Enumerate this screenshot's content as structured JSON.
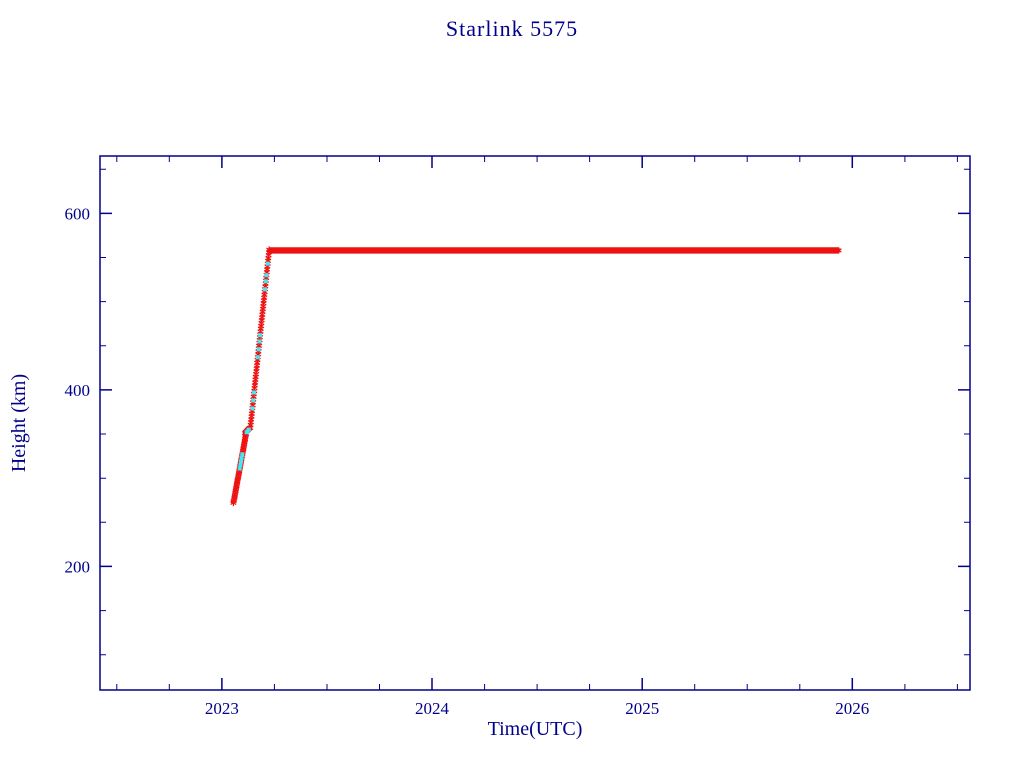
{
  "page": {
    "background": "#ffffff"
  },
  "chart_data": {
    "type": "scatter",
    "title": "Starlink 5575",
    "xlabel": "Time(UTC)",
    "ylabel": "Height (km)",
    "xlim": [
      2022.42,
      2026.56
    ],
    "ylim": [
      60,
      665
    ],
    "xticks": [
      2023,
      2024,
      2025,
      2026
    ],
    "yticks": [
      200,
      400,
      600
    ],
    "x_minor_step": 0.25,
    "y_minor_step": 50,
    "axis_color": "#00008b",
    "grid": false,
    "legend": null,
    "series": [
      {
        "name": "observed height",
        "color": "#ee1111",
        "marker": "asterisk",
        "segments": [
          {
            "x0": 2023.055,
            "y0": 272,
            "x1": 2023.115,
            "y1": 350,
            "n": 42
          },
          {
            "x0": 2023.11,
            "y0": 351,
            "x1": 2023.132,
            "y1": 357,
            "n": 16
          },
          {
            "x0": 2023.135,
            "y0": 357,
            "x1": 2023.225,
            "y1": 559,
            "n": 64
          },
          {
            "x0": 2023.228,
            "y0": 558,
            "x1": 2025.935,
            "y1": 558,
            "n": 500
          }
        ]
      },
      {
        "name": "predicted height",
        "color": "#45e6f2",
        "marker": "square",
        "points": [
          [
            2023.085,
            311
          ],
          [
            2023.088,
            315
          ],
          [
            2023.091,
            319
          ],
          [
            2023.094,
            323
          ],
          [
            2023.097,
            327
          ],
          [
            2023.118,
            352
          ],
          [
            2023.123,
            353
          ],
          [
            2023.128,
            355
          ],
          [
            2023.145,
            379
          ],
          [
            2023.149,
            388
          ],
          [
            2023.153,
            397
          ],
          [
            2023.171,
            437
          ],
          [
            2023.175,
            446
          ],
          [
            2023.179,
            455
          ],
          [
            2023.182,
            462
          ],
          [
            2023.205,
            514
          ],
          [
            2023.209,
            523
          ],
          [
            2023.212,
            530
          ],
          [
            2023.218,
            543
          ]
        ]
      }
    ]
  }
}
